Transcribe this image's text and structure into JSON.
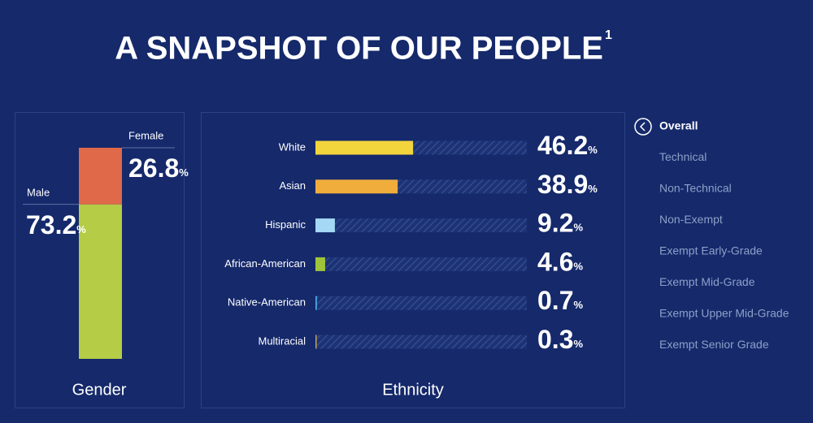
{
  "title": "A SNAPSHOT OF OUR PEOPLE",
  "title_footnote": "1",
  "menu": [
    "Overall",
    "Technical",
    "Non-Technical",
    "Non-Exempt",
    "Exempt Early-Grade",
    "Exempt Mid-Grade",
    "Exempt Upper Mid-Grade",
    "Exempt Senior Grade"
  ],
  "active_menu": 0,
  "chart_data": [
    {
      "type": "stacked-bar",
      "xlabel": "Gender",
      "ylim": [
        0,
        100
      ],
      "series": [
        {
          "name": "Male",
          "color": "#b5cc46",
          "values": [
            73.2
          ],
          "value_labels": [
            "73.2%"
          ]
        },
        {
          "name": "Female",
          "color": "#e0694a",
          "values": [
            26.8
          ],
          "value_labels": [
            "26.8%"
          ]
        }
      ]
    },
    {
      "type": "hbar",
      "xlabel": "Ethnicity",
      "xlim": [
        0,
        100
      ],
      "categories": [
        "White",
        "Asian",
        "Hispanic",
        "African-American",
        "Native-American",
        "Multiracial"
      ],
      "values": [
        46.2,
        38.9,
        9.2,
        4.6,
        0.7,
        0.3
      ],
      "value_labels": [
        "46.2%",
        "38.9%",
        "9.2%",
        "4.6%",
        "0.7%",
        "0.3%"
      ],
      "colors": [
        "#f2d53c",
        "#f0ad3c",
        "#a4d8f5",
        "#9fc43a",
        "#4aa8e0",
        "#c8a050"
      ]
    }
  ]
}
